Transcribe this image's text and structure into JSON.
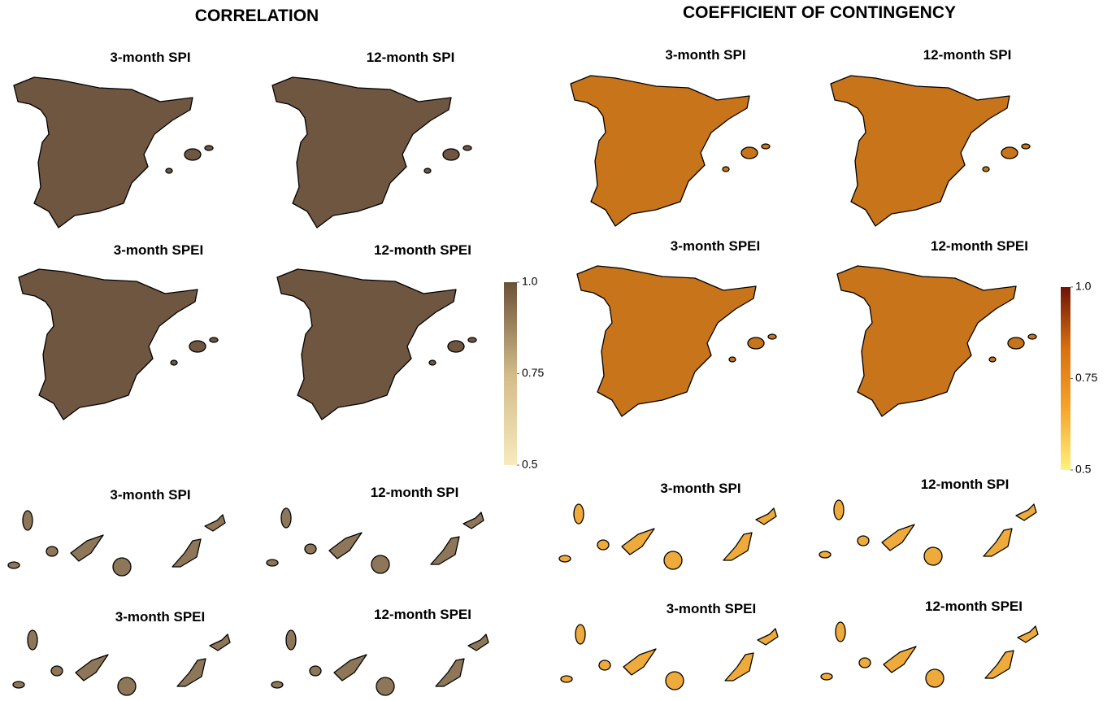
{
  "sections": [
    {
      "title": "CORRELATION",
      "colorbar": {
        "lim": [
          0.5,
          1
        ],
        "ticks": [
          {
            "value": 1,
            "label": "1.0"
          },
          0.75,
          0.5
        ],
        "colors": [
          "#f7ebbf",
          "#d2bb88",
          "#6b5138"
        ]
      },
      "panels": [
        {
          "label": "3-month SPI"
        },
        {
          "label": "12-month SPI"
        },
        {
          "label": "3-month SPEI"
        },
        {
          "label": "12-month SPEI"
        },
        {
          "label": "3-month SPI"
        },
        {
          "label": "12-month SPI"
        },
        {
          "label": "3-month SPEI"
        },
        {
          "label": "12-month SPEI"
        }
      ]
    },
    {
      "title": "COEFFICIENT OF CONTINGENCY",
      "colorbar": {
        "lim": [
          0.5,
          1
        ],
        "ticks": [
          {
            "value": 1,
            "label": "1.0"
          },
          0.75,
          0.5
        ],
        "colors": [
          "#fff27a",
          "#f7a52c",
          "#d8700e",
          "#6e1405"
        ]
      },
      "panels": [
        {
          "label": "3-month SPI"
        },
        {
          "label": "12-month SPI"
        },
        {
          "label": "3-month SPEI"
        },
        {
          "label": "12-month SPEI"
        },
        {
          "label": "3-month SPI"
        },
        {
          "label": "12-month SPI"
        },
        {
          "label": "3-month SPEI"
        },
        {
          "label": "12-month SPEI"
        }
      ]
    }
  ]
}
